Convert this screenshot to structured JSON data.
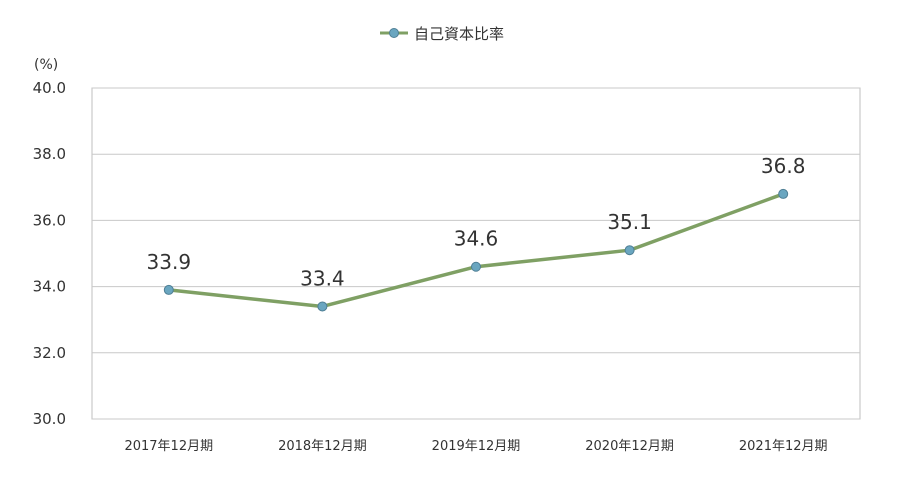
{
  "chart_data": {
    "type": "line",
    "title": "",
    "xlabel": "",
    "ylabel": "",
    "y_unit": "(%)",
    "categories": [
      "2017年12月期",
      "2018年12月期",
      "2019年12月期",
      "2020年12月期",
      "2021年12月期"
    ],
    "series": [
      {
        "name": "自己資本比率",
        "values": [
          33.9,
          33.4,
          34.6,
          35.1,
          36.8
        ],
        "data_labels": [
          "33.9",
          "33.4",
          "34.6",
          "35.1",
          "36.8"
        ],
        "color": "#7fa064",
        "marker_color": "#6aa6c0"
      }
    ],
    "ylim": [
      30.0,
      40.0
    ],
    "yticks": [
      "30.0",
      "32.0",
      "34.0",
      "36.0",
      "38.0",
      "40.0"
    ],
    "grid": true,
    "legend_position": "top-center"
  }
}
